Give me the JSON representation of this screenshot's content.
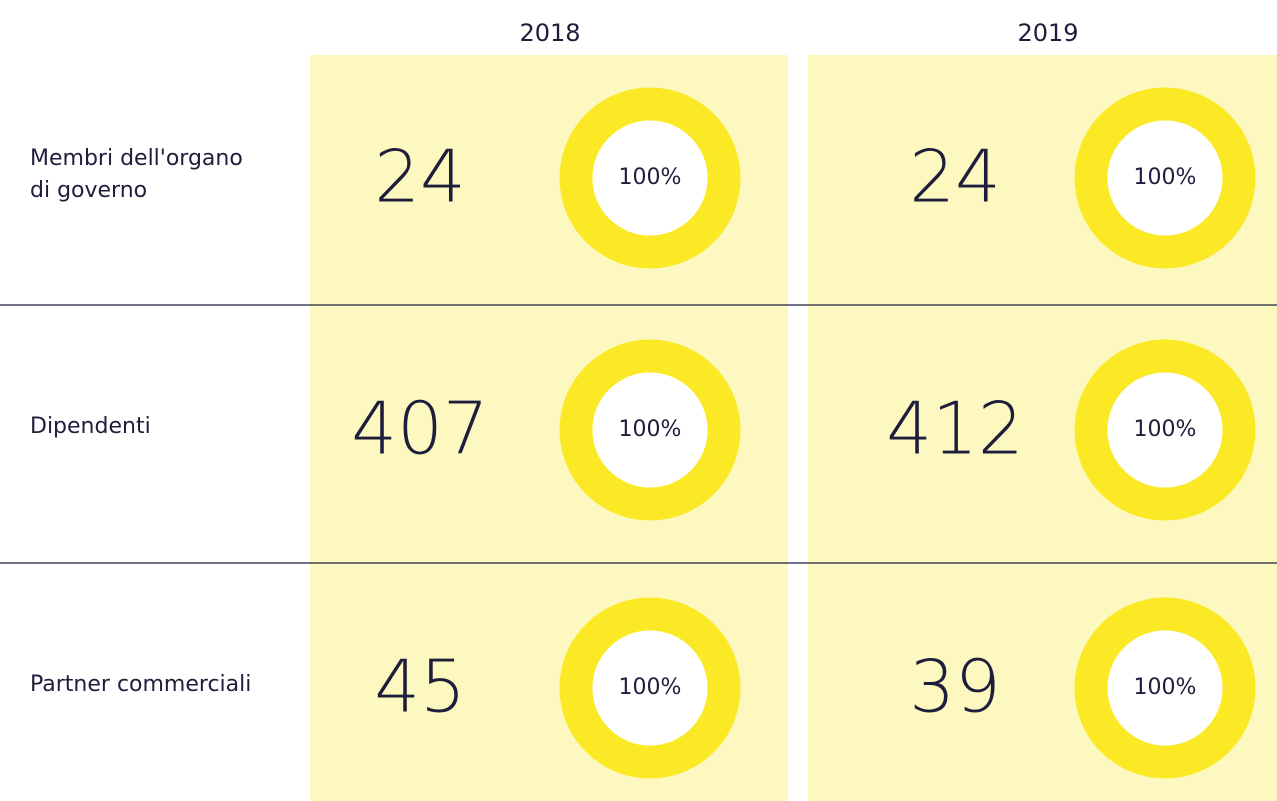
{
  "table": {
    "columns": [
      "2018",
      "2019"
    ],
    "rows": [
      {
        "label": [
          "Membri dell'organo",
          "di governo"
        ],
        "cells": [
          {
            "count": 24,
            "percent": 100,
            "percent_label": "100%"
          },
          {
            "count": 24,
            "percent": 100,
            "percent_label": "100%"
          }
        ]
      },
      {
        "label": [
          "Dipendenti"
        ],
        "cells": [
          {
            "count": 407,
            "percent": 100,
            "percent_label": "100%"
          },
          {
            "count": 412,
            "percent": 100,
            "percent_label": "100%"
          }
        ]
      },
      {
        "label": [
          "Partner commerciali"
        ],
        "cells": [
          {
            "count": 45,
            "percent": 100,
            "percent_label": "100%"
          },
          {
            "count": 39,
            "percent": 100,
            "percent_label": "100%"
          }
        ]
      }
    ]
  }
}
